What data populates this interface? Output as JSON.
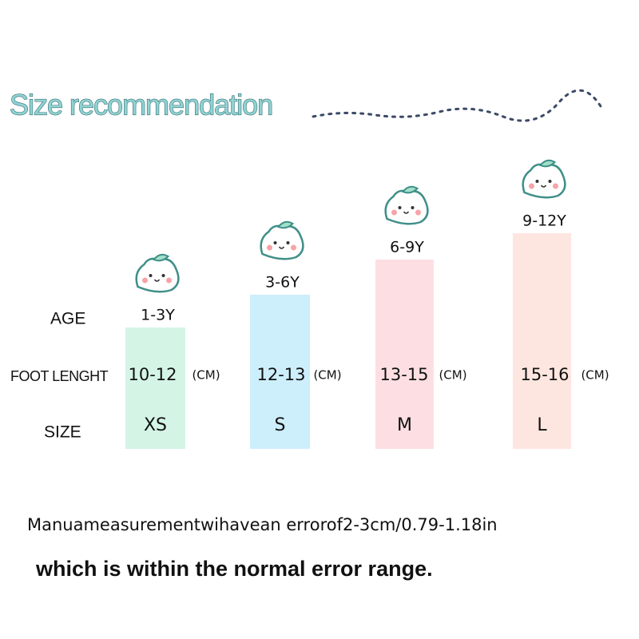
{
  "header": {
    "title": "Size recommendation"
  },
  "row_labels": {
    "age": "AGE",
    "foot_length": "FOOT LENGHT",
    "size": "SIZE"
  },
  "columns": [
    {
      "age": "1-3Y",
      "foot_length": "10-12",
      "unit": "(CM)",
      "size": "XS"
    },
    {
      "age": "3-6Y",
      "foot_length": "12-13",
      "unit": "(CM)",
      "size": "S"
    },
    {
      "age": "6-9Y",
      "foot_length": "13-15",
      "unit": "(CM)",
      "size": "M"
    },
    {
      "age": "9-12Y",
      "foot_length": "15-16",
      "unit": "(CM)",
      "size": "L"
    }
  ],
  "notes": [
    "Manuameasurementwihavean errorof2-3cm/0.79-1.18in",
    "which is within the normal error range."
  ]
}
